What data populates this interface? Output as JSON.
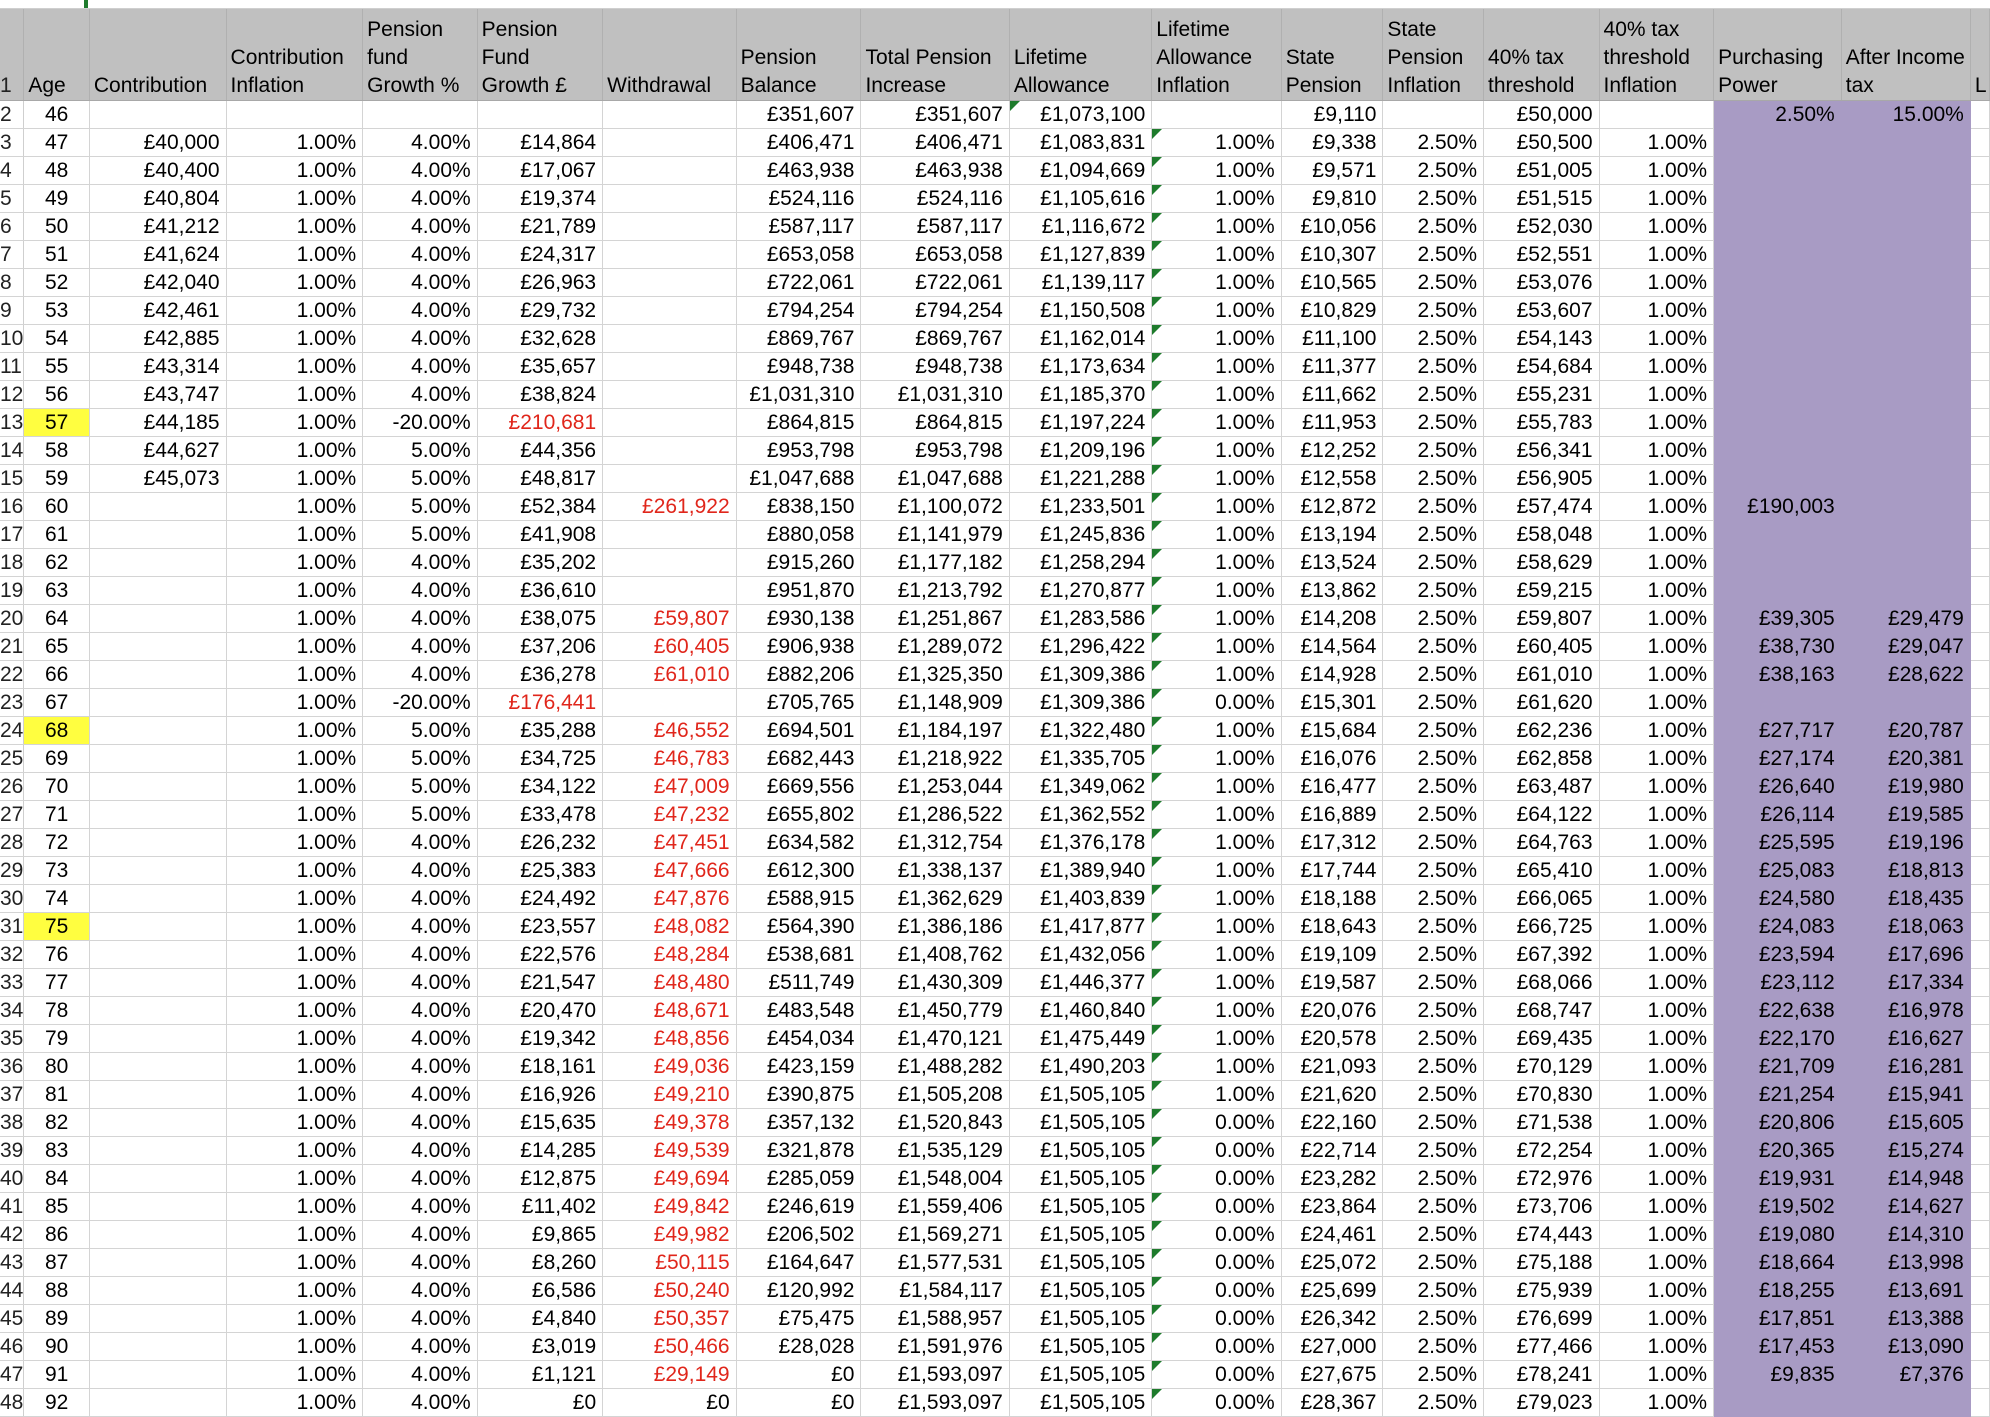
{
  "headers": [
    "",
    "Age",
    "Contribution",
    "Contribution Inflation",
    "Pension fund Growth %",
    "Pension Fund Growth £",
    "Withdrawal",
    "Pension Balance",
    "Total Pension Increase",
    "Lifetime Allowance",
    "Lifetime Allowance Inflation",
    "State Pension",
    "State Pension Inflation",
    "40% tax threshold",
    "40% tax threshold Inflation",
    "Purchasing Power",
    "After Income tax",
    "L"
  ],
  "highlighted_ages": [
    "57",
    "68",
    "75"
  ],
  "colors": {
    "header_bg": "#c0c0c0",
    "highlight": "#fffe40",
    "negative_text": "#e0261b",
    "purple_block": "#a89bc4",
    "comment_marker": "#1e7b2c"
  },
  "rows": [
    [
      "2",
      "46",
      "",
      "",
      "",
      "",
      "",
      "£351,607",
      "£351,607",
      "£1,073,100",
      "",
      "£9,110",
      "",
      "£50,000",
      "",
      "2.50%",
      "15.00%"
    ],
    [
      "3",
      "47",
      "£40,000",
      "1.00%",
      "4.00%",
      "£14,864",
      "",
      "£406,471",
      "£406,471",
      "£1,083,831",
      "1.00%",
      "£9,338",
      "2.50%",
      "£50,500",
      "1.00%",
      "",
      ""
    ],
    [
      "4",
      "48",
      "£40,400",
      "1.00%",
      "4.00%",
      "£17,067",
      "",
      "£463,938",
      "£463,938",
      "£1,094,669",
      "1.00%",
      "£9,571",
      "2.50%",
      "£51,005",
      "1.00%",
      "",
      ""
    ],
    [
      "5",
      "49",
      "£40,804",
      "1.00%",
      "4.00%",
      "£19,374",
      "",
      "£524,116",
      "£524,116",
      "£1,105,616",
      "1.00%",
      "£9,810",
      "2.50%",
      "£51,515",
      "1.00%",
      "",
      ""
    ],
    [
      "6",
      "50",
      "£41,212",
      "1.00%",
      "4.00%",
      "£21,789",
      "",
      "£587,117",
      "£587,117",
      "£1,116,672",
      "1.00%",
      "£10,056",
      "2.50%",
      "£52,030",
      "1.00%",
      "",
      ""
    ],
    [
      "7",
      "51",
      "£41,624",
      "1.00%",
      "4.00%",
      "£24,317",
      "",
      "£653,058",
      "£653,058",
      "£1,127,839",
      "1.00%",
      "£10,307",
      "2.50%",
      "£52,551",
      "1.00%",
      "",
      ""
    ],
    [
      "8",
      "52",
      "£42,040",
      "1.00%",
      "4.00%",
      "£26,963",
      "",
      "£722,061",
      "£722,061",
      "£1,139,117",
      "1.00%",
      "£10,565",
      "2.50%",
      "£53,076",
      "1.00%",
      "",
      ""
    ],
    [
      "9",
      "53",
      "£42,461",
      "1.00%",
      "4.00%",
      "£29,732",
      "",
      "£794,254",
      "£794,254",
      "£1,150,508",
      "1.00%",
      "£10,829",
      "2.50%",
      "£53,607",
      "1.00%",
      "",
      ""
    ],
    [
      "10",
      "54",
      "£42,885",
      "1.00%",
      "4.00%",
      "£32,628",
      "",
      "£869,767",
      "£869,767",
      "£1,162,014",
      "1.00%",
      "£11,100",
      "2.50%",
      "£54,143",
      "1.00%",
      "",
      ""
    ],
    [
      "11",
      "55",
      "£43,314",
      "1.00%",
      "4.00%",
      "£35,657",
      "",
      "£948,738",
      "£948,738",
      "£1,173,634",
      "1.00%",
      "£11,377",
      "2.50%",
      "£54,684",
      "1.00%",
      "",
      ""
    ],
    [
      "12",
      "56",
      "£43,747",
      "1.00%",
      "4.00%",
      "£38,824",
      "",
      "£1,031,310",
      "£1,031,310",
      "£1,185,370",
      "1.00%",
      "£11,662",
      "2.50%",
      "£55,231",
      "1.00%",
      "",
      ""
    ],
    [
      "13",
      "57",
      "£44,185",
      "1.00%",
      "-20.00%",
      "£210,681",
      "",
      "£864,815",
      "£864,815",
      "£1,197,224",
      "1.00%",
      "£11,953",
      "2.50%",
      "£55,783",
      "1.00%",
      "",
      ""
    ],
    [
      "14",
      "58",
      "£44,627",
      "1.00%",
      "5.00%",
      "£44,356",
      "",
      "£953,798",
      "£953,798",
      "£1,209,196",
      "1.00%",
      "£12,252",
      "2.50%",
      "£56,341",
      "1.00%",
      "",
      ""
    ],
    [
      "15",
      "59",
      "£45,073",
      "1.00%",
      "5.00%",
      "£48,817",
      "",
      "£1,047,688",
      "£1,047,688",
      "£1,221,288",
      "1.00%",
      "£12,558",
      "2.50%",
      "£56,905",
      "1.00%",
      "",
      ""
    ],
    [
      "16",
      "60",
      "",
      "1.00%",
      "5.00%",
      "£52,384",
      "£261,922",
      "£838,150",
      "£1,100,072",
      "£1,233,501",
      "1.00%",
      "£12,872",
      "2.50%",
      "£57,474",
      "1.00%",
      "£190,003",
      ""
    ],
    [
      "17",
      "61",
      "",
      "1.00%",
      "5.00%",
      "£41,908",
      "",
      "£880,058",
      "£1,141,979",
      "£1,245,836",
      "1.00%",
      "£13,194",
      "2.50%",
      "£58,048",
      "1.00%",
      "",
      ""
    ],
    [
      "18",
      "62",
      "",
      "1.00%",
      "4.00%",
      "£35,202",
      "",
      "£915,260",
      "£1,177,182",
      "£1,258,294",
      "1.00%",
      "£13,524",
      "2.50%",
      "£58,629",
      "1.00%",
      "",
      ""
    ],
    [
      "19",
      "63",
      "",
      "1.00%",
      "4.00%",
      "£36,610",
      "",
      "£951,870",
      "£1,213,792",
      "£1,270,877",
      "1.00%",
      "£13,862",
      "2.50%",
      "£59,215",
      "1.00%",
      "",
      ""
    ],
    [
      "20",
      "64",
      "",
      "1.00%",
      "4.00%",
      "£38,075",
      "£59,807",
      "£930,138",
      "£1,251,867",
      "£1,283,586",
      "1.00%",
      "£14,208",
      "2.50%",
      "£59,807",
      "1.00%",
      "£39,305",
      "£29,479"
    ],
    [
      "21",
      "65",
      "",
      "1.00%",
      "4.00%",
      "£37,206",
      "£60,405",
      "£906,938",
      "£1,289,072",
      "£1,296,422",
      "1.00%",
      "£14,564",
      "2.50%",
      "£60,405",
      "1.00%",
      "£38,730",
      "£29,047"
    ],
    [
      "22",
      "66",
      "",
      "1.00%",
      "4.00%",
      "£36,278",
      "£61,010",
      "£882,206",
      "£1,325,350",
      "£1,309,386",
      "1.00%",
      "£14,928",
      "2.50%",
      "£61,010",
      "1.00%",
      "£38,163",
      "£28,622"
    ],
    [
      "23",
      "67",
      "",
      "1.00%",
      "-20.00%",
      "£176,441",
      "",
      "£705,765",
      "£1,148,909",
      "£1,309,386",
      "0.00%",
      "£15,301",
      "2.50%",
      "£61,620",
      "1.00%",
      "",
      ""
    ],
    [
      "24",
      "68",
      "",
      "1.00%",
      "5.00%",
      "£35,288",
      "£46,552",
      "£694,501",
      "£1,184,197",
      "£1,322,480",
      "1.00%",
      "£15,684",
      "2.50%",
      "£62,236",
      "1.00%",
      "£27,717",
      "£20,787"
    ],
    [
      "25",
      "69",
      "",
      "1.00%",
      "5.00%",
      "£34,725",
      "£46,783",
      "£682,443",
      "£1,218,922",
      "£1,335,705",
      "1.00%",
      "£16,076",
      "2.50%",
      "£62,858",
      "1.00%",
      "£27,174",
      "£20,381"
    ],
    [
      "26",
      "70",
      "",
      "1.00%",
      "5.00%",
      "£34,122",
      "£47,009",
      "£669,556",
      "£1,253,044",
      "£1,349,062",
      "1.00%",
      "£16,477",
      "2.50%",
      "£63,487",
      "1.00%",
      "£26,640",
      "£19,980"
    ],
    [
      "27",
      "71",
      "",
      "1.00%",
      "5.00%",
      "£33,478",
      "£47,232",
      "£655,802",
      "£1,286,522",
      "£1,362,552",
      "1.00%",
      "£16,889",
      "2.50%",
      "£64,122",
      "1.00%",
      "£26,114",
      "£19,585"
    ],
    [
      "28",
      "72",
      "",
      "1.00%",
      "4.00%",
      "£26,232",
      "£47,451",
      "£634,582",
      "£1,312,754",
      "£1,376,178",
      "1.00%",
      "£17,312",
      "2.50%",
      "£64,763",
      "1.00%",
      "£25,595",
      "£19,196"
    ],
    [
      "29",
      "73",
      "",
      "1.00%",
      "4.00%",
      "£25,383",
      "£47,666",
      "£612,300",
      "£1,338,137",
      "£1,389,940",
      "1.00%",
      "£17,744",
      "2.50%",
      "£65,410",
      "1.00%",
      "£25,083",
      "£18,813"
    ],
    [
      "30",
      "74",
      "",
      "1.00%",
      "4.00%",
      "£24,492",
      "£47,876",
      "£588,915",
      "£1,362,629",
      "£1,403,839",
      "1.00%",
      "£18,188",
      "2.50%",
      "£66,065",
      "1.00%",
      "£24,580",
      "£18,435"
    ],
    [
      "31",
      "75",
      "",
      "1.00%",
      "4.00%",
      "£23,557",
      "£48,082",
      "£564,390",
      "£1,386,186",
      "£1,417,877",
      "1.00%",
      "£18,643",
      "2.50%",
      "£66,725",
      "1.00%",
      "£24,083",
      "£18,063"
    ],
    [
      "32",
      "76",
      "",
      "1.00%",
      "4.00%",
      "£22,576",
      "£48,284",
      "£538,681",
      "£1,408,762",
      "£1,432,056",
      "1.00%",
      "£19,109",
      "2.50%",
      "£67,392",
      "1.00%",
      "£23,594",
      "£17,696"
    ],
    [
      "33",
      "77",
      "",
      "1.00%",
      "4.00%",
      "£21,547",
      "£48,480",
      "£511,749",
      "£1,430,309",
      "£1,446,377",
      "1.00%",
      "£19,587",
      "2.50%",
      "£68,066",
      "1.00%",
      "£23,112",
      "£17,334"
    ],
    [
      "34",
      "78",
      "",
      "1.00%",
      "4.00%",
      "£20,470",
      "£48,671",
      "£483,548",
      "£1,450,779",
      "£1,460,840",
      "1.00%",
      "£20,076",
      "2.50%",
      "£68,747",
      "1.00%",
      "£22,638",
      "£16,978"
    ],
    [
      "35",
      "79",
      "",
      "1.00%",
      "4.00%",
      "£19,342",
      "£48,856",
      "£454,034",
      "£1,470,121",
      "£1,475,449",
      "1.00%",
      "£20,578",
      "2.50%",
      "£69,435",
      "1.00%",
      "£22,170",
      "£16,627"
    ],
    [
      "36",
      "80",
      "",
      "1.00%",
      "4.00%",
      "£18,161",
      "£49,036",
      "£423,159",
      "£1,488,282",
      "£1,490,203",
      "1.00%",
      "£21,093",
      "2.50%",
      "£70,129",
      "1.00%",
      "£21,709",
      "£16,281"
    ],
    [
      "37",
      "81",
      "",
      "1.00%",
      "4.00%",
      "£16,926",
      "£49,210",
      "£390,875",
      "£1,505,208",
      "£1,505,105",
      "1.00%",
      "£21,620",
      "2.50%",
      "£70,830",
      "1.00%",
      "£21,254",
      "£15,941"
    ],
    [
      "38",
      "82",
      "",
      "1.00%",
      "4.00%",
      "£15,635",
      "£49,378",
      "£357,132",
      "£1,520,843",
      "£1,505,105",
      "0.00%",
      "£22,160",
      "2.50%",
      "£71,538",
      "1.00%",
      "£20,806",
      "£15,605"
    ],
    [
      "39",
      "83",
      "",
      "1.00%",
      "4.00%",
      "£14,285",
      "£49,539",
      "£321,878",
      "£1,535,129",
      "£1,505,105",
      "0.00%",
      "£22,714",
      "2.50%",
      "£72,254",
      "1.00%",
      "£20,365",
      "£15,274"
    ],
    [
      "40",
      "84",
      "",
      "1.00%",
      "4.00%",
      "£12,875",
      "£49,694",
      "£285,059",
      "£1,548,004",
      "£1,505,105",
      "0.00%",
      "£23,282",
      "2.50%",
      "£72,976",
      "1.00%",
      "£19,931",
      "£14,948"
    ],
    [
      "41",
      "85",
      "",
      "1.00%",
      "4.00%",
      "£11,402",
      "£49,842",
      "£246,619",
      "£1,559,406",
      "£1,505,105",
      "0.00%",
      "£23,864",
      "2.50%",
      "£73,706",
      "1.00%",
      "£19,502",
      "£14,627"
    ],
    [
      "42",
      "86",
      "",
      "1.00%",
      "4.00%",
      "£9,865",
      "£49,982",
      "£206,502",
      "£1,569,271",
      "£1,505,105",
      "0.00%",
      "£24,461",
      "2.50%",
      "£74,443",
      "1.00%",
      "£19,080",
      "£14,310"
    ],
    [
      "43",
      "87",
      "",
      "1.00%",
      "4.00%",
      "£8,260",
      "£50,115",
      "£164,647",
      "£1,577,531",
      "£1,505,105",
      "0.00%",
      "£25,072",
      "2.50%",
      "£75,188",
      "1.00%",
      "£18,664",
      "£13,998"
    ],
    [
      "44",
      "88",
      "",
      "1.00%",
      "4.00%",
      "£6,586",
      "£50,240",
      "£120,992",
      "£1,584,117",
      "£1,505,105",
      "0.00%",
      "£25,699",
      "2.50%",
      "£75,939",
      "1.00%",
      "£18,255",
      "£13,691"
    ],
    [
      "45",
      "89",
      "",
      "1.00%",
      "4.00%",
      "£4,840",
      "£50,357",
      "£75,475",
      "£1,588,957",
      "£1,505,105",
      "0.00%",
      "£26,342",
      "2.50%",
      "£76,699",
      "1.00%",
      "£17,851",
      "£13,388"
    ],
    [
      "46",
      "90",
      "",
      "1.00%",
      "4.00%",
      "£3,019",
      "£50,466",
      "£28,028",
      "£1,591,976",
      "£1,505,105",
      "0.00%",
      "£27,000",
      "2.50%",
      "£77,466",
      "1.00%",
      "£17,453",
      "£13,090"
    ],
    [
      "47",
      "91",
      "",
      "1.00%",
      "4.00%",
      "£1,121",
      "£29,149",
      "£0",
      "£1,593,097",
      "£1,505,105",
      "0.00%",
      "£27,675",
      "2.50%",
      "£78,241",
      "1.00%",
      "£9,835",
      "£7,376"
    ],
    [
      "48",
      "92",
      "",
      "1.00%",
      "4.00%",
      "£0",
      "£0",
      "£0",
      "£1,593,097",
      "£1,505,105",
      "0.00%",
      "£28,367",
      "2.50%",
      "£79,023",
      "1.00%",
      "",
      ""
    ]
  ]
}
